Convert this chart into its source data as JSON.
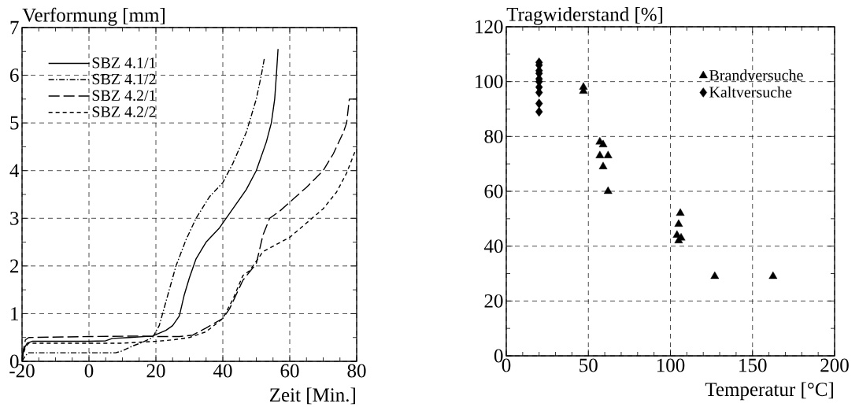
{
  "chart_data": [
    {
      "type": "line",
      "xlabel": "Zeit [Min.]",
      "ylabel": "Verformung [mm]",
      "xlim": [
        -20,
        80
      ],
      "ylim": [
        0,
        7
      ],
      "xticks": [
        -20,
        0,
        20,
        40,
        60,
        80
      ],
      "yticks": [
        0,
        1,
        2,
        3,
        4,
        5,
        6,
        7
      ],
      "grid": true,
      "legend": "top left",
      "marker": "none",
      "series": [
        {
          "name": "SBZ 4.1/1",
          "color": "#000000",
          "line_style": "solid",
          "x": [
            -20,
            -19.5,
            -18.5,
            -17,
            0,
            5,
            7,
            12,
            19,
            23,
            25,
            27,
            28.5,
            30,
            32,
            35,
            39,
            43,
            47,
            50,
            53,
            54.5,
            55.5,
            56,
            56.5
          ],
          "values": [
            0,
            0.25,
            0.38,
            0.42,
            0.42,
            0.43,
            0.48,
            0.5,
            0.53,
            0.65,
            0.75,
            0.95,
            1.4,
            1.75,
            2.15,
            2.5,
            2.8,
            3.2,
            3.6,
            4.0,
            4.6,
            5.0,
            5.5,
            6.0,
            6.55
          ]
        },
        {
          "name": "SBZ 4.1/2",
          "color": "#000000",
          "line_style": "dashdot",
          "x": [
            -20,
            -19,
            -18,
            0,
            8,
            10,
            13,
            16,
            19,
            21,
            22,
            24,
            26,
            29,
            32,
            36,
            40,
            43,
            47,
            50,
            51.5,
            52.4
          ],
          "values": [
            0,
            0.12,
            0.18,
            0.18,
            0.18,
            0.22,
            0.32,
            0.4,
            0.5,
            0.75,
            1.0,
            1.5,
            2.0,
            2.55,
            3.0,
            3.45,
            3.75,
            4.15,
            4.8,
            5.5,
            6.0,
            6.35
          ]
        },
        {
          "name": "SBZ 4.2/1",
          "color": "#000000",
          "line_style": "longdash",
          "x": [
            -20,
            -19,
            -18,
            0,
            15,
            20,
            27,
            31,
            35,
            40,
            42,
            44,
            46,
            50,
            52,
            54,
            57,
            61,
            65,
            70,
            73,
            76,
            77,
            77.8,
            80
          ],
          "values": [
            0.1,
            0.45,
            0.5,
            0.52,
            0.53,
            0.52,
            0.52,
            0.55,
            0.7,
            0.9,
            1.1,
            1.4,
            1.7,
            2.05,
            2.65,
            3.0,
            3.15,
            3.4,
            3.65,
            4.0,
            4.35,
            4.8,
            5.0,
            5.5,
            5.5
          ]
        },
        {
          "name": "SBZ 4.2/2",
          "color": "#000000",
          "line_style": "dashed",
          "x": [
            -20,
            -19,
            -18,
            0,
            10,
            15,
            20,
            25,
            30,
            35,
            40,
            43,
            46,
            48,
            50,
            52,
            56,
            60,
            65,
            70,
            74,
            77,
            79.5
          ],
          "values": [
            0.05,
            0.3,
            0.38,
            0.38,
            0.38,
            0.4,
            0.42,
            0.45,
            0.5,
            0.62,
            0.9,
            1.3,
            1.8,
            1.9,
            2.1,
            2.3,
            2.45,
            2.6,
            2.9,
            3.2,
            3.55,
            3.95,
            4.4
          ]
        }
      ]
    },
    {
      "type": "scatter",
      "xlabel": "Temperatur [°C]",
      "ylabel": "Tragwiderstand [%]",
      "xlim": [
        0,
        200
      ],
      "ylim": [
        0,
        120
      ],
      "xticks": [
        0,
        50,
        100,
        150,
        200
      ],
      "yticks": [
        0,
        20,
        40,
        60,
        80,
        100,
        120
      ],
      "grid": true,
      "legend": "top right",
      "series": [
        {
          "name": "Brandversuche",
          "color": "#000000",
          "marker": "triangle",
          "x": [
            47,
            47,
            57,
            59,
            57,
            62,
            59,
            62,
            106,
            105,
            104,
            106.5,
            105,
            127,
            162.5
          ],
          "values": [
            98,
            96.5,
            78,
            77,
            73,
            73,
            69,
            60,
            52,
            48,
            44,
            43,
            42,
            29,
            29
          ]
        },
        {
          "name": "Kaltversuche",
          "color": "#000000",
          "marker": "diamond",
          "x": [
            20,
            20,
            20,
            20,
            20,
            20,
            20,
            20,
            20,
            20
          ],
          "values": [
            107,
            106,
            104,
            103,
            101,
            100,
            98,
            96,
            92,
            89
          ]
        }
      ]
    }
  ]
}
